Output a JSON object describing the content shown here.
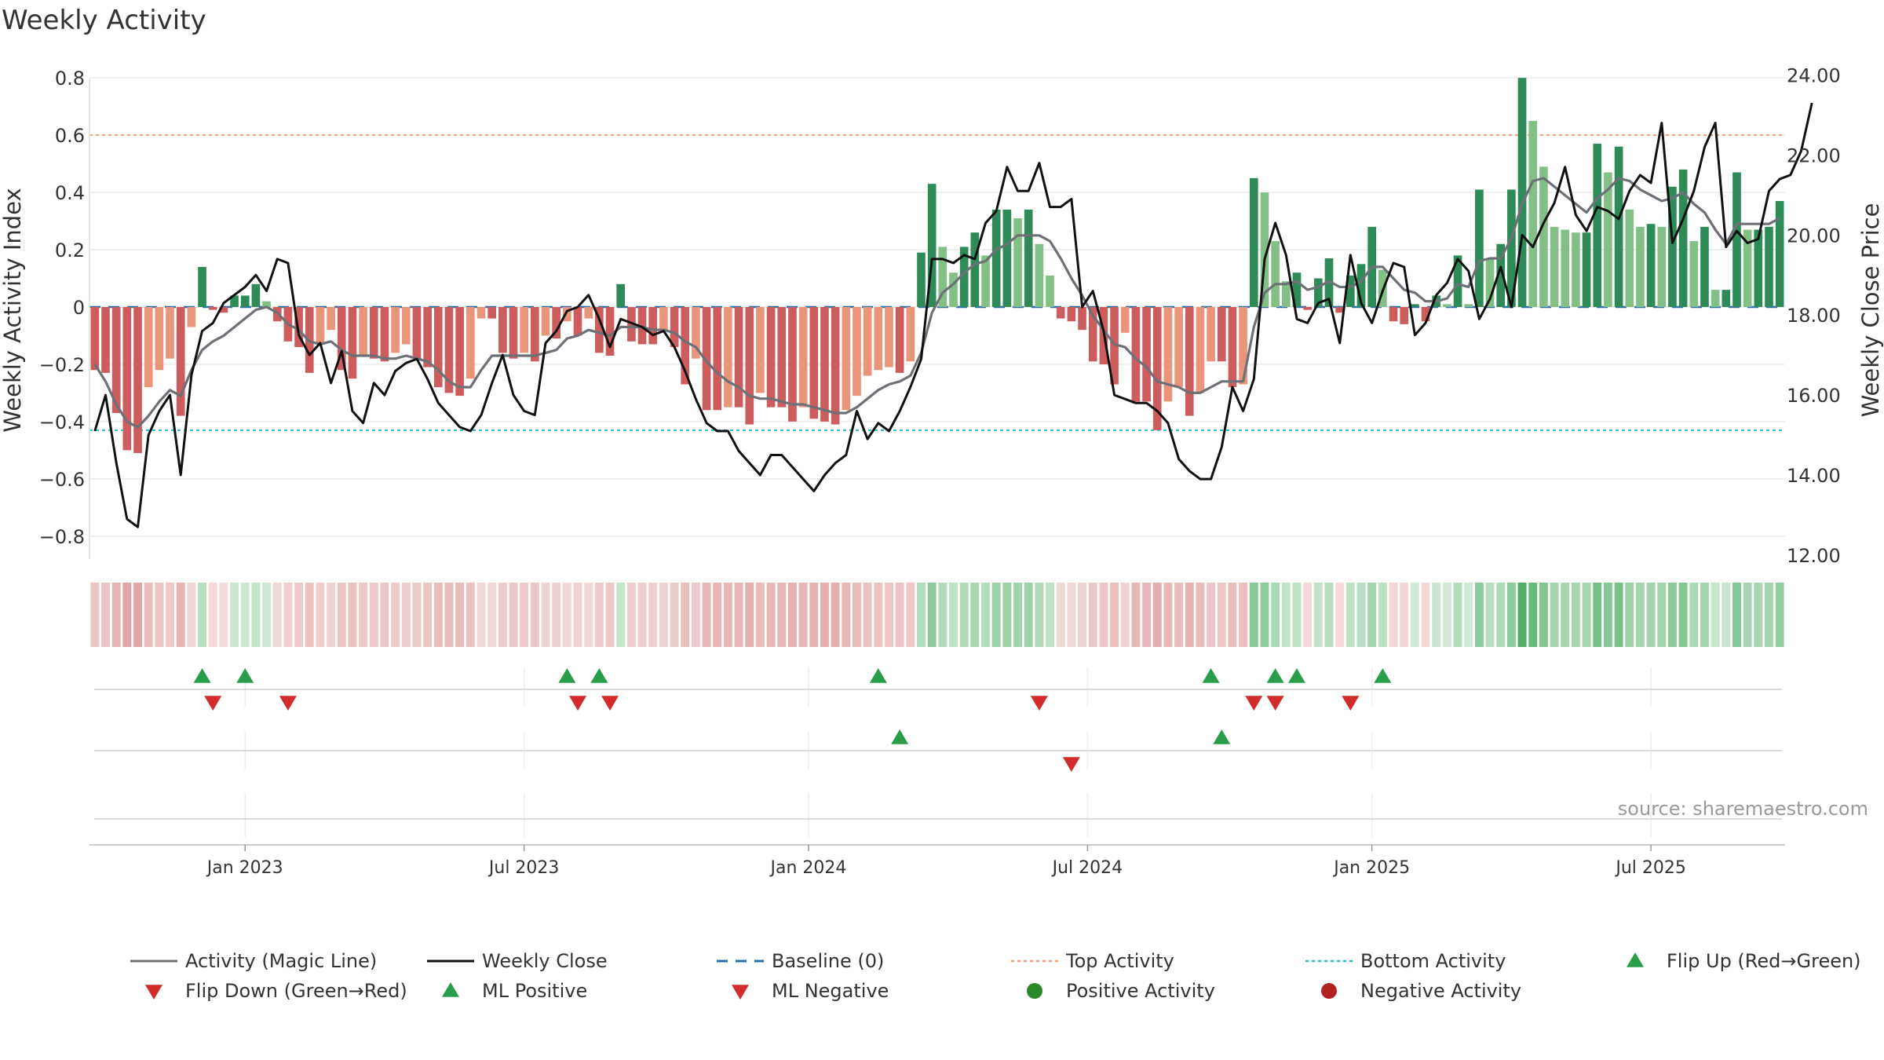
{
  "chart_data": {
    "type": "bar",
    "title": "Weekly Activity",
    "ylabel": "Weekly Activity Index",
    "y2label": "Weekly Close Price",
    "ylim": [
      -0.88,
      0.88
    ],
    "y2lim": [
      11.9,
      24.5
    ],
    "yticks": [
      0.8,
      0.6,
      0.4,
      0.2,
      0,
      -0.2,
      -0.4,
      -0.6,
      -0.8
    ],
    "ytick_labels": [
      "0.8",
      "0.6",
      "0.4",
      "0.2",
      "0",
      "−0.2",
      "−0.4",
      "−0.6",
      "−0.8"
    ],
    "y2ticks": [
      24,
      22,
      20,
      18,
      16,
      14,
      12
    ],
    "y2tick_labels": [
      "24.00",
      "22.00",
      "20.00",
      "18.00",
      "16.00",
      "14.00",
      "12.00"
    ],
    "xticks": [
      {
        "label": "Jan 2023",
        "week": 14
      },
      {
        "label": "Jul 2023",
        "week": 40
      },
      {
        "label": "Jan 2024",
        "week": 66.5
      },
      {
        "label": "Jul 2024",
        "week": 92.5
      },
      {
        "label": "Jan 2025",
        "week": 119
      },
      {
        "label": "Jul 2025",
        "week": 145
      }
    ],
    "top_activity": 0.6,
    "bottom_activity": -0.43,
    "baseline": 0,
    "n_weeks": 158,
    "activity": [
      -0.22,
      -0.23,
      -0.37,
      -0.5,
      -0.51,
      -0.28,
      -0.22,
      -0.18,
      -0.38,
      -0.07,
      0.14,
      -0.01,
      -0.02,
      0.04,
      0.04,
      0.08,
      0.02,
      -0.05,
      -0.12,
      -0.14,
      -0.23,
      -0.13,
      -0.08,
      -0.22,
      -0.25,
      -0.17,
      -0.18,
      -0.19,
      -0.16,
      -0.13,
      -0.18,
      -0.21,
      -0.28,
      -0.3,
      -0.31,
      -0.25,
      -0.04,
      -0.04,
      -0.16,
      -0.18,
      -0.16,
      -0.19,
      -0.1,
      -0.11,
      -0.05,
      -0.1,
      -0.04,
      -0.16,
      -0.17,
      0.08,
      -0.12,
      -0.13,
      -0.13,
      -0.08,
      -0.14,
      -0.27,
      -0.18,
      -0.36,
      -0.36,
      -0.35,
      -0.35,
      -0.41,
      -0.3,
      -0.35,
      -0.35,
      -0.4,
      -0.35,
      -0.39,
      -0.4,
      -0.41,
      -0.36,
      -0.31,
      -0.24,
      -0.22,
      -0.21,
      -0.23,
      -0.19,
      0.19,
      0.43,
      0.21,
      0.12,
      0.21,
      0.26,
      0.18,
      0.34,
      0.34,
      0.31,
      0.34,
      0.22,
      0.11,
      -0.04,
      -0.05,
      -0.08,
      -0.19,
      -0.2,
      -0.27,
      -0.09,
      -0.33,
      -0.33,
      -0.43,
      -0.33,
      -0.28,
      -0.38,
      -0.3,
      -0.19,
      -0.19,
      -0.28,
      -0.27,
      0.45,
      0.4,
      0.23,
      0.09,
      0.12,
      -0.01,
      0.1,
      0.17,
      -0.02,
      0.11,
      0.15,
      0.28,
      0.13,
      -0.05,
      -0.06,
      0.01,
      -0.05,
      0.04,
      0.01,
      0.18,
      0.01,
      0.41,
      0.17,
      0.22,
      0.41,
      0.8,
      0.65,
      0.49,
      0.28,
      0.27,
      0.26,
      0.26,
      0.57,
      0.47,
      0.56,
      0.34,
      0.28,
      0.29,
      0.28,
      0.42,
      0.48,
      0.23,
      0.28,
      0.06,
      0.06,
      0.47,
      0.27,
      0.27,
      0.28,
      0.37
    ],
    "close": [
      15.1,
      16,
      14.3,
      12.9,
      12.7,
      15,
      15.6,
      16,
      14,
      16.5,
      17.6,
      17.8,
      18.3,
      18.5,
      18.7,
      19,
      18.6,
      19.4,
      19.3,
      17.5,
      17,
      17.3,
      16.3,
      17.1,
      15.6,
      15.3,
      16.3,
      16,
      16.6,
      16.8,
      16.9,
      16.4,
      15.8,
      15.5,
      15.2,
      15.1,
      15.5,
      16.3,
      17,
      16,
      15.6,
      15.5,
      17.3,
      17.6,
      18.1,
      18.2,
      18.5,
      17.9,
      17.2,
      17.9,
      17.8,
      17.7,
      17.5,
      17.6,
      17.2,
      16.6,
      15.9,
      15.3,
      15.1,
      15.1,
      14.6,
      14.3,
      14,
      14.5,
      14.5,
      14.2,
      13.9,
      13.6,
      14,
      14.3,
      14.5,
      15.6,
      14.9,
      15.3,
      15.1,
      15.6,
      16.2,
      16.9,
      19.4,
      19.4,
      19.3,
      19.5,
      19.4,
      20.3,
      20.6,
      21.7,
      21.1,
      21.1,
      21.8,
      20.7,
      20.7,
      20.9,
      18.2,
      18.6,
      17.6,
      16,
      15.9,
      15.8,
      15.8,
      15.6,
      15.3,
      14.4,
      14.1,
      13.9,
      13.9,
      14.7,
      16.2,
      15.6,
      16.4,
      19.4,
      20.3,
      19.5,
      17.9,
      17.8,
      18.3,
      18.4,
      17.3,
      19.5,
      18.3,
      17.8,
      18.6,
      19.3,
      19.2,
      17.5,
      17.8,
      18.5,
      18.8,
      19.4,
      19.1,
      17.9,
      18.4,
      19.2,
      18.2,
      20,
      19.7,
      20.3,
      20.8,
      21.7,
      20.5,
      20.1,
      20.7,
      20.6,
      20.4,
      21.1,
      21.5,
      21.3,
      22.8,
      19.8,
      20.4,
      21.1,
      22.2,
      22.8,
      19.7,
      20.1,
      19.8,
      19.9,
      21.1,
      21.4,
      21.5,
      22.1,
      23.3
    ],
    "magic_line": [
      -0.2,
      -0.26,
      -0.34,
      -0.4,
      -0.42,
      -0.38,
      -0.33,
      -0.29,
      -0.31,
      -0.22,
      -0.15,
      -0.12,
      -0.1,
      -0.07,
      -0.04,
      -0.01,
      0,
      -0.02,
      -0.06,
      -0.08,
      -0.12,
      -0.13,
      -0.12,
      -0.15,
      -0.17,
      -0.17,
      -0.17,
      -0.18,
      -0.18,
      -0.17,
      -0.18,
      -0.19,
      -0.22,
      -0.26,
      -0.28,
      -0.28,
      -0.22,
      -0.17,
      -0.17,
      -0.17,
      -0.17,
      -0.17,
      -0.16,
      -0.15,
      -0.11,
      -0.1,
      -0.08,
      -0.09,
      -0.1,
      -0.07,
      -0.07,
      -0.07,
      -0.08,
      -0.08,
      -0.09,
      -0.12,
      -0.14,
      -0.19,
      -0.23,
      -0.26,
      -0.28,
      -0.31,
      -0.32,
      -0.32,
      -0.33,
      -0.34,
      -0.34,
      -0.35,
      -0.36,
      -0.37,
      -0.37,
      -0.35,
      -0.32,
      -0.29,
      -0.27,
      -0.26,
      -0.24,
      -0.16,
      -0.02,
      0.05,
      0.08,
      0.12,
      0.15,
      0.16,
      0.2,
      0.22,
      0.25,
      0.25,
      0.25,
      0.23,
      0.17,
      0.1,
      0.04,
      -0.03,
      -0.08,
      -0.13,
      -0.14,
      -0.18,
      -0.21,
      -0.26,
      -0.27,
      -0.28,
      -0.3,
      -0.3,
      -0.28,
      -0.26,
      -0.26,
      -0.26,
      -0.07,
      0.05,
      0.08,
      0.08,
      0.09,
      0.06,
      0.07,
      0.09,
      0.07,
      0.07,
      0.09,
      0.14,
      0.14,
      0.1,
      0.06,
      0.05,
      0.02,
      0.02,
      0.03,
      0.08,
      0.07,
      0.16,
      0.17,
      0.17,
      0.24,
      0.36,
      0.44,
      0.45,
      0.42,
      0.39,
      0.36,
      0.33,
      0.38,
      0.41,
      0.45,
      0.44,
      0.41,
      0.39,
      0.37,
      0.38,
      0.4,
      0.36,
      0.33,
      0.27,
      0.22,
      0.29,
      0.29,
      0.29,
      0.29,
      0.31
    ],
    "flip_up_weeks": [
      10,
      14,
      44,
      47,
      73,
      104,
      110,
      112,
      120
    ],
    "flip_down_weeks": [
      11,
      18,
      45,
      48,
      88,
      108,
      110,
      117
    ],
    "ml_positive_weeks": [
      75,
      105
    ],
    "ml_negative_weeks": [
      91
    ],
    "series": [
      {
        "name": "Activity (Magic Line)",
        "color": "#6e7078"
      },
      {
        "name": "Weekly Close",
        "color": "#111111"
      },
      {
        "name": "Baseline (0)",
        "color": "#2a6fb0"
      },
      {
        "name": "Top Activity",
        "color": "#f0a070"
      },
      {
        "name": "Bottom Activity",
        "color": "#29b7d8"
      },
      {
        "name": "Flip Up (Red→Green)",
        "color": "#2a9d4a"
      },
      {
        "name": "Flip Down (Green→Red)",
        "color": "#d22b2b"
      },
      {
        "name": "ML Positive",
        "color": "#2a9d4a"
      },
      {
        "name": "ML Negative",
        "color": "#d22b2b"
      },
      {
        "name": "Positive Activity",
        "color": "#2a8a2a"
      },
      {
        "name": "Negative Activity",
        "color": "#b22222"
      }
    ],
    "legend_position": "bottom",
    "source": "source: sharemaestro.com"
  }
}
